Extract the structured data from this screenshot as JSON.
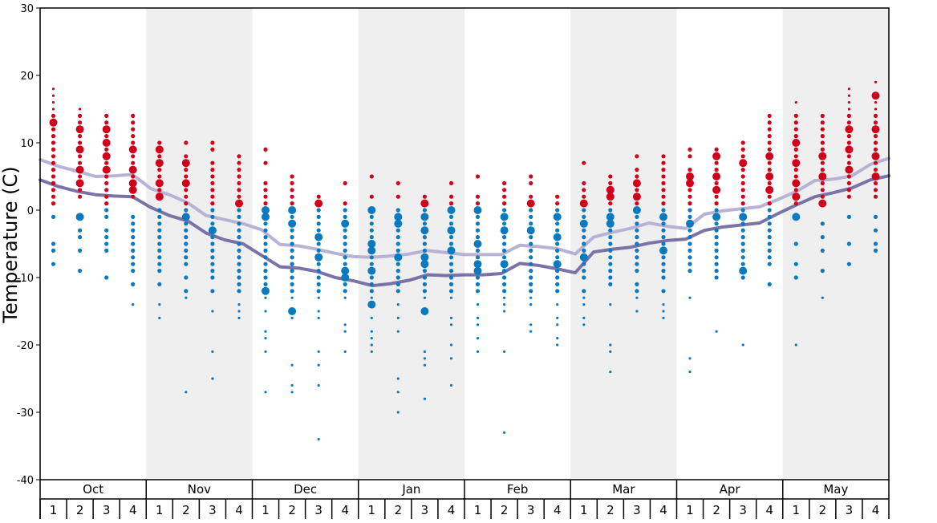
{
  "chart_data": {
    "type": "scatter",
    "title": "",
    "ylabel": "Temperature (C)",
    "ylim": [
      -40,
      30
    ],
    "yticks": [
      -40,
      -30,
      -20,
      -10,
      0,
      10,
      20,
      30
    ],
    "months": [
      "Oct",
      "Nov",
      "Dec",
      "Jan",
      "Feb",
      "Mar",
      "Apr",
      "May"
    ],
    "weeks": [
      "1",
      "2",
      "3",
      "4"
    ],
    "colors": {
      "warm_dot": "#d0021b",
      "cold_dot": "#0a7ac0",
      "upper_line": "#b8b2d4",
      "lower_line": "#7b72a8",
      "band": "#efefef"
    },
    "series": [
      {
        "values": [
          7.5,
          6.5,
          5.8,
          5.0,
          5.1,
          5.3,
          3.2,
          2.3,
          1.1,
          -0.8,
          -1.4,
          -2.0,
          -2.9,
          -5.1,
          -5.3,
          -5.8,
          -6.4,
          -6.9,
          -7.0,
          -6.8,
          -6.5,
          -6.0,
          -6.3,
          -6.6,
          -6.6,
          -6.6,
          -5.2,
          -5.4,
          -5.7,
          -6.5,
          -4.0,
          -3.3,
          -2.7,
          -1.9,
          -2.4,
          -2.7,
          -0.6,
          -0.1,
          0.2,
          0.5,
          1.6,
          2.8,
          4.4,
          4.6,
          5.1,
          6.8,
          7.7
        ]
      },
      {
        "values": [
          4.5,
          3.5,
          2.8,
          2.3,
          2.1,
          2.0,
          0.4,
          -0.8,
          -1.6,
          -3.4,
          -4.4,
          -5.0,
          -6.7,
          -8.4,
          -8.6,
          -9.1,
          -10.0,
          -10.5,
          -11.2,
          -10.9,
          -10.4,
          -9.6,
          -9.7,
          -9.6,
          -9.6,
          -9.4,
          -7.9,
          -8.2,
          -8.7,
          -9.3,
          -6.2,
          -5.8,
          -5.5,
          -4.9,
          -4.5,
          -4.3,
          -3.0,
          -2.5,
          -2.2,
          -1.9,
          -0.5,
          0.8,
          2.0,
          2.6,
          3.3,
          4.5,
          5.1
        ]
      }
    ],
    "dots": [
      {
        "w": 0,
        "t": [
          18,
          17,
          16,
          15,
          14,
          13,
          12,
          11,
          10,
          9,
          8,
          7,
          6,
          5,
          4,
          3,
          2,
          1,
          -1,
          -5,
          -6,
          -8
        ],
        "big": [
          13
        ]
      },
      {
        "w": 1,
        "t": [
          15,
          14,
          13,
          12,
          11,
          10,
          9,
          8,
          7,
          6,
          5,
          4,
          3,
          2,
          -1,
          -3,
          -4,
          -6,
          -9
        ],
        "big": [
          12,
          9,
          6,
          4,
          -1
        ]
      },
      {
        "w": 2,
        "t": [
          14,
          13,
          12,
          11,
          10,
          9,
          8,
          7,
          6,
          5,
          4,
          3,
          2,
          1,
          0,
          -1,
          -3,
          -4,
          -5,
          -6,
          -10
        ],
        "big": [
          12,
          10,
          8,
          6
        ]
      },
      {
        "w": 3,
        "t": [
          14,
          13,
          12,
          11,
          10,
          9,
          8,
          7,
          6,
          5,
          4,
          3,
          2,
          -1,
          -2,
          -3,
          -4,
          -5,
          -6,
          -7,
          -8,
          -9,
          -11,
          -14
        ],
        "big": [
          9,
          6,
          4,
          3
        ]
      },
      {
        "w": 4,
        "t": [
          10,
          9,
          8,
          7,
          6,
          5,
          4,
          3,
          2,
          0,
          -1,
          -2,
          -3,
          -4,
          -5,
          -6,
          -7,
          -8,
          -9,
          -11,
          -14,
          -16
        ],
        "big": [
          9,
          7,
          4,
          2
        ]
      },
      {
        "w": 5,
        "t": [
          10,
          8,
          7,
          6,
          5,
          4,
          3,
          2,
          1,
          0,
          -1,
          -2,
          -3,
          -4,
          -5,
          -6,
          -7,
          -8,
          -10,
          -12,
          -13,
          -27
        ],
        "big": [
          7,
          4,
          -1
        ]
      },
      {
        "w": 6,
        "t": [
          10,
          9,
          7,
          6,
          5,
          4,
          3,
          2,
          1,
          0,
          -1,
          -2,
          -3,
          -4,
          -5,
          -6,
          -7,
          -8,
          -9,
          -10,
          -12,
          -15,
          -21,
          -25
        ],
        "big": [
          -3
        ]
      },
      {
        "w": 7,
        "t": [
          8,
          7,
          6,
          5,
          4,
          3,
          2,
          1,
          0,
          -1,
          -2,
          -3,
          -4,
          -5,
          -6,
          -7,
          -8,
          -9,
          -10,
          -11,
          -12,
          -14,
          -15,
          -16
        ],
        "big": [
          1
        ]
      },
      {
        "w": 8,
        "t": [
          9,
          7,
          4,
          3,
          2,
          1,
          0,
          -1,
          -2,
          -3,
          -4,
          -5,
          -6,
          -7,
          -8,
          -9,
          -10,
          -11,
          -12,
          -13,
          -15,
          -18,
          -19,
          -21,
          -27
        ],
        "big": [
          0,
          -1,
          -12
        ]
      },
      {
        "w": 9,
        "t": [
          5,
          4,
          3,
          2,
          1,
          0,
          -1,
          -2,
          -3,
          -4,
          -5,
          -6,
          -7,
          -8,
          -9,
          -10,
          -11,
          -12,
          -13,
          -15,
          -16,
          -23,
          -26,
          -27
        ],
        "big": [
          0,
          -2,
          -15
        ]
      },
      {
        "w": 10,
        "t": [
          2,
          1,
          0,
          -1,
          -2,
          -3,
          -4,
          -5,
          -6,
          -7,
          -8,
          -9,
          -10,
          -11,
          -12,
          -13,
          -15,
          -16,
          -21,
          -23,
          -26,
          -34
        ],
        "big": [
          1,
          -4,
          -7
        ]
      },
      {
        "w": 11,
        "t": [
          4,
          1,
          0,
          -1,
          -2,
          -3,
          -4,
          -5,
          -6,
          -7,
          -8,
          -9,
          -10,
          -11,
          -12,
          -13,
          -17,
          -18,
          -21
        ],
        "big": [
          -2,
          -9,
          -10
        ]
      },
      {
        "w": 12,
        "t": [
          5,
          2,
          0,
          -1,
          -2,
          -3,
          -4,
          -5,
          -6,
          -7,
          -8,
          -9,
          -10,
          -11,
          -12,
          -13,
          -14,
          -16,
          -18,
          -19,
          -20,
          -21
        ],
        "big": [
          0,
          -5,
          -6,
          -9,
          -14
        ]
      },
      {
        "w": 13,
        "t": [
          4,
          2,
          0,
          -1,
          -2,
          -3,
          -4,
          -5,
          -6,
          -7,
          -8,
          -9,
          -10,
          -11,
          -12,
          -14,
          -16,
          -18,
          -25,
          -27,
          -30
        ],
        "big": [
          -1,
          -2,
          -7
        ]
      },
      {
        "w": 14,
        "t": [
          2,
          1,
          0,
          -1,
          -2,
          -3,
          -4,
          -5,
          -6,
          -7,
          -8,
          -9,
          -10,
          -11,
          -12,
          -13,
          -15,
          -21,
          -22,
          -23,
          -28
        ],
        "big": [
          1,
          -1,
          -3,
          -7,
          -8,
          -15
        ]
      },
      {
        "w": 15,
        "t": [
          4,
          2,
          1,
          0,
          -1,
          -2,
          -3,
          -4,
          -5,
          -6,
          -7,
          -8,
          -9,
          -10,
          -11,
          -12,
          -13,
          -16,
          -17,
          -20,
          -22,
          -26
        ],
        "big": [
          0,
          -3,
          -6
        ]
      },
      {
        "w": 16,
        "t": [
          5,
          2,
          1,
          0,
          -1,
          -2,
          -3,
          -4,
          -5,
          -6,
          -7,
          -8,
          -9,
          -10,
          -11,
          -12,
          -14,
          -16,
          -17,
          -19,
          -21
        ],
        "big": [
          0,
          -5,
          -8,
          -9
        ]
      },
      {
        "w": 17,
        "t": [
          4,
          3,
          2,
          1,
          0,
          -1,
          -2,
          -3,
          -4,
          -5,
          -6,
          -7,
          -8,
          -9,
          -10,
          -11,
          -12,
          -13,
          -14,
          -15,
          -21,
          -33
        ],
        "big": [
          -1,
          -3,
          -8
        ]
      },
      {
        "w": 18,
        "t": [
          5,
          4,
          2,
          1,
          0,
          -1,
          -2,
          -3,
          -4,
          -5,
          -6,
          -7,
          -8,
          -9,
          -10,
          -11,
          -12,
          -13,
          -14,
          -17,
          -18
        ],
        "big": [
          1,
          -3
        ]
      },
      {
        "w": 19,
        "t": [
          2,
          1,
          0,
          -1,
          -2,
          -3,
          -4,
          -5,
          -6,
          -7,
          -8,
          -9,
          -10,
          -11,
          -12,
          -14,
          -16,
          -17,
          -19,
          -20
        ],
        "big": [
          -1,
          -4,
          -8
        ]
      },
      {
        "w": 20,
        "t": [
          7,
          4,
          3,
          2,
          1,
          0,
          -1,
          -2,
          -3,
          -4,
          -5,
          -6,
          -7,
          -8,
          -9,
          -10,
          -12,
          -13,
          -14,
          -16,
          -17
        ],
        "big": [
          1,
          -2,
          -7
        ]
      },
      {
        "w": 21,
        "t": [
          5,
          4,
          3,
          2,
          1,
          0,
          -1,
          -2,
          -3,
          -4,
          -5,
          -6,
          -7,
          -8,
          -9,
          -10,
          -11,
          -14,
          -20,
          -21,
          -24
        ],
        "big": [
          3,
          2,
          -1,
          -2
        ]
      },
      {
        "w": 22,
        "t": [
          8,
          6,
          5,
          4,
          3,
          2,
          1,
          0,
          -1,
          -2,
          -3,
          -4,
          -5,
          -6,
          -7,
          -8,
          -9,
          -11,
          -12,
          -13,
          -15
        ],
        "big": [
          4,
          2,
          0
        ]
      },
      {
        "w": 23,
        "t": [
          8,
          7,
          6,
          5,
          4,
          3,
          2,
          1,
          0,
          -1,
          -2,
          -3,
          -4,
          -5,
          -6,
          -7,
          -8,
          -9,
          -10,
          -12,
          -14,
          -15,
          -16
        ],
        "big": [
          -1,
          -6
        ]
      },
      {
        "w": 24,
        "t": [
          9,
          8,
          6,
          5,
          4,
          3,
          2,
          1,
          0,
          -1,
          -2,
          -3,
          -4,
          -5,
          -6,
          -7,
          -8,
          -9,
          -13,
          -22,
          -24
        ],
        "big": [
          5,
          4,
          -2
        ]
      },
      {
        "w": 25,
        "t": [
          9,
          8,
          7,
          6,
          5,
          4,
          3,
          2,
          1,
          0,
          -1,
          -2,
          -3,
          -4,
          -5,
          -6,
          -7,
          -8,
          -9,
          -10,
          -18
        ],
        "big": [
          8,
          5,
          3,
          -1
        ]
      },
      {
        "w": 26,
        "t": [
          10,
          9,
          8,
          7,
          6,
          5,
          4,
          3,
          2,
          1,
          0,
          -1,
          -2,
          -3,
          -4,
          -5,
          -6,
          -7,
          -8,
          -9,
          -10,
          -20
        ],
        "big": [
          7,
          -1,
          -9
        ]
      },
      {
        "w": 27,
        "t": [
          14,
          13,
          12,
          11,
          10,
          9,
          8,
          7,
          6,
          5,
          4,
          3,
          2,
          1,
          0,
          -1,
          -2,
          -3,
          -4,
          -5,
          -6,
          -7,
          -8,
          -11
        ],
        "big": [
          8,
          5,
          3
        ]
      },
      {
        "w": 28,
        "t": [
          16,
          14,
          13,
          12,
          11,
          10,
          9,
          8,
          7,
          6,
          5,
          4,
          3,
          2,
          1,
          -1,
          -5,
          -8,
          -10,
          -20
        ],
        "big": [
          10,
          7,
          4,
          2,
          -1
        ]
      },
      {
        "w": 29,
        "t": [
          14,
          13,
          12,
          11,
          10,
          9,
          8,
          7,
          6,
          5,
          4,
          3,
          2,
          1,
          -2,
          -4,
          -6,
          -9,
          -13
        ],
        "big": [
          8,
          5,
          1
        ]
      },
      {
        "w": 30,
        "t": [
          18,
          17,
          16,
          15,
          14,
          13,
          12,
          11,
          10,
          9,
          8,
          7,
          6,
          5,
          4,
          3,
          2,
          -1,
          -5,
          -8
        ],
        "big": [
          12,
          9,
          6
        ]
      },
      {
        "w": 31,
        "t": [
          19,
          17,
          16,
          15,
          14,
          13,
          12,
          11,
          10,
          9,
          8,
          7,
          6,
          5,
          4,
          3,
          2,
          -1,
          -3,
          -5,
          -6
        ],
        "big": [
          17,
          12,
          8,
          5
        ]
      }
    ]
  }
}
